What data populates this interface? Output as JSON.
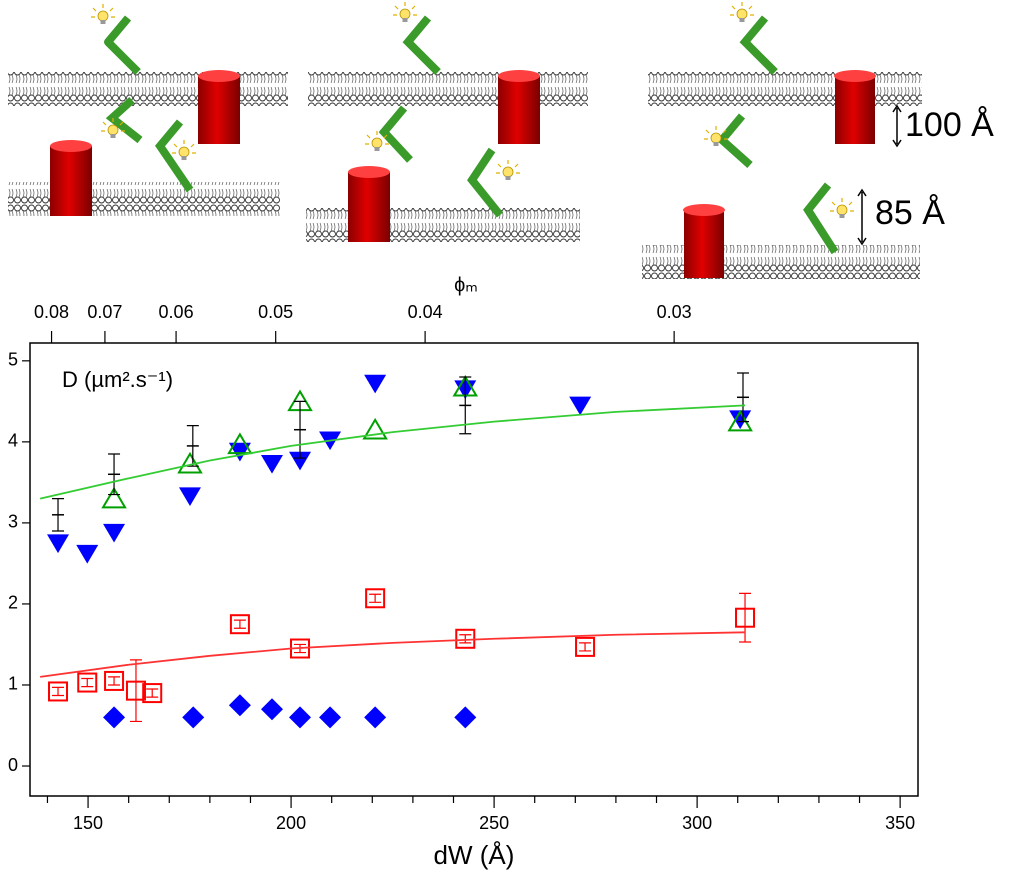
{
  "illustration": {
    "labels": [
      "100 Å",
      "85 Å"
    ]
  },
  "chart_data": {
    "type": "scatter",
    "x_label": "dW (Å)",
    "x2_label": "ϕₘ",
    "annotation": "D (µm².s⁻¹)",
    "xlim": [
      135.7,
      354.4
    ],
    "xticks": [
      150,
      200,
      250,
      300,
      350
    ],
    "x_minor_ticks": [
      140,
      160,
      170,
      180,
      190,
      210,
      220,
      230,
      240,
      260,
      270,
      280,
      290,
      310,
      320,
      330,
      340
    ],
    "ylim": [
      -0.37,
      5.22
    ],
    "yticks": [
      0,
      1,
      2,
      3,
      4,
      5
    ],
    "x2scale": "reciprocal",
    "x2lim": [
      0.0849,
      0.0241
    ],
    "x2ticks": [
      0.08,
      0.07,
      0.06,
      0.05,
      0.04,
      0.03
    ],
    "series": [
      {
        "color": "#0000ff",
        "marker": "triangle-down",
        "x": [
          142.6,
          149.8,
          156.4,
          175.1,
          187.4,
          195.3,
          202.2,
          209.6,
          220.7,
          242.9,
          271.2,
          310.6
        ],
        "values": [
          2.75,
          2.62,
          2.88,
          3.33,
          3.88,
          3.73,
          3.77,
          4.02,
          4.72,
          4.65,
          4.45,
          4.28
        ]
      },
      {
        "color": "#00a000",
        "marker": "triangle-up-open",
        "x": [
          156.4,
          175.1,
          187.4,
          202.2,
          220.7,
          242.9,
          310.6
        ],
        "values": [
          3.3,
          3.73,
          3.97,
          4.5,
          4.15,
          4.68,
          4.25
        ]
      },
      {
        "color": "#000000",
        "marker": "hline",
        "x": [
          142.6,
          156.4,
          175.8,
          202.2,
          242.9,
          311.3
        ],
        "values": [
          3.1,
          3.6,
          3.95,
          4.15,
          4.45,
          4.55
        ],
        "errors": [
          0.2,
          0.25,
          0.25,
          0.35,
          0.35,
          0.3
        ]
      },
      {
        "color": "#ff0000",
        "marker": "square-open",
        "x": [
          142.6,
          149.8,
          156.4,
          161.8,
          165.8,
          187.4,
          202.2,
          220.7,
          242.9,
          272.4,
          311.8
        ],
        "values": [
          0.92,
          1.03,
          1.05,
          0.93,
          0.9,
          1.75,
          1.45,
          2.07,
          1.57,
          1.47,
          1.83
        ],
        "errors": [
          0.05,
          0.05,
          0.05,
          0.38,
          0.05,
          0.05,
          0.05,
          0.05,
          0.05,
          0.05,
          0.3
        ]
      },
      {
        "color": "#0000ff",
        "marker": "diamond",
        "x": [
          156.4,
          175.9,
          187.4,
          195.3,
          202.2,
          209.6,
          220.7,
          242.9
        ],
        "values": [
          0.6,
          0.6,
          0.75,
          0.7,
          0.6,
          0.6,
          0.6,
          0.6
        ]
      },
      {
        "color": "#33cc33",
        "marker": "line",
        "x": [
          138.2,
          160,
          180,
          200,
          225,
          250,
          280,
          311.8
        ],
        "values": [
          3.3,
          3.55,
          3.77,
          3.95,
          4.12,
          4.25,
          4.37,
          4.45
        ]
      },
      {
        "color": "#ff3333",
        "marker": "line",
        "x": [
          138.2,
          160,
          180,
          200,
          225,
          250,
          280,
          311.8
        ],
        "values": [
          1.1,
          1.25,
          1.36,
          1.45,
          1.52,
          1.57,
          1.62,
          1.65
        ]
      }
    ]
  }
}
